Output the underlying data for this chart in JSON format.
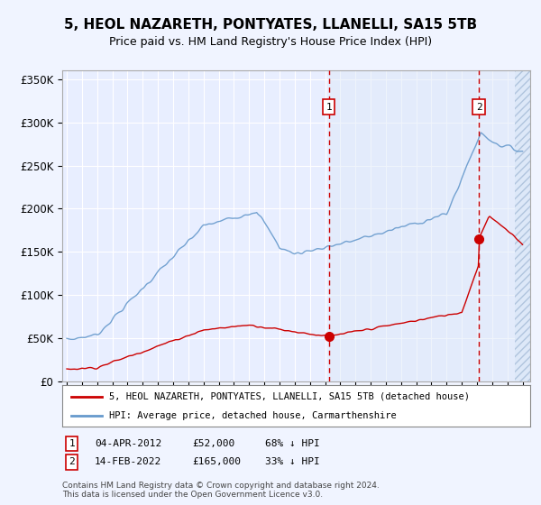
{
  "title": "5, HEOL NAZARETH, PONTYATES, LLANELLI, SA15 5TB",
  "subtitle": "Price paid vs. HM Land Registry's House Price Index (HPI)",
  "background_color": "#f0f4ff",
  "plot_bg_color": "#e8eeff",
  "highlight_color": "#dde8f8",
  "hatch_color": "#c8d4f0",
  "grid_color": "#ffffff",
  "hpi_color": "#6699cc",
  "price_color": "#cc0000",
  "vline_color": "#cc0000",
  "ylim": [
    0,
    360000
  ],
  "yticks": [
    0,
    50000,
    100000,
    150000,
    200000,
    250000,
    300000,
    350000
  ],
  "ytick_labels": [
    "£0",
    "£50K",
    "£100K",
    "£150K",
    "£200K",
    "£250K",
    "£300K",
    "£350K"
  ],
  "year_start": 1995,
  "year_end": 2025,
  "transaction1_date": 2012.25,
  "transaction1_price": 52000,
  "transaction2_date": 2022.12,
  "transaction2_price": 165000,
  "legend_line1": "5, HEOL NAZARETH, PONTYATES, LLANELLI, SA15 5TB (detached house)",
  "legend_line2": "HPI: Average price, detached house, Carmarthenshire",
  "footer": "Contains HM Land Registry data © Crown copyright and database right 2024.\nThis data is licensed under the Open Government Licence v3.0."
}
